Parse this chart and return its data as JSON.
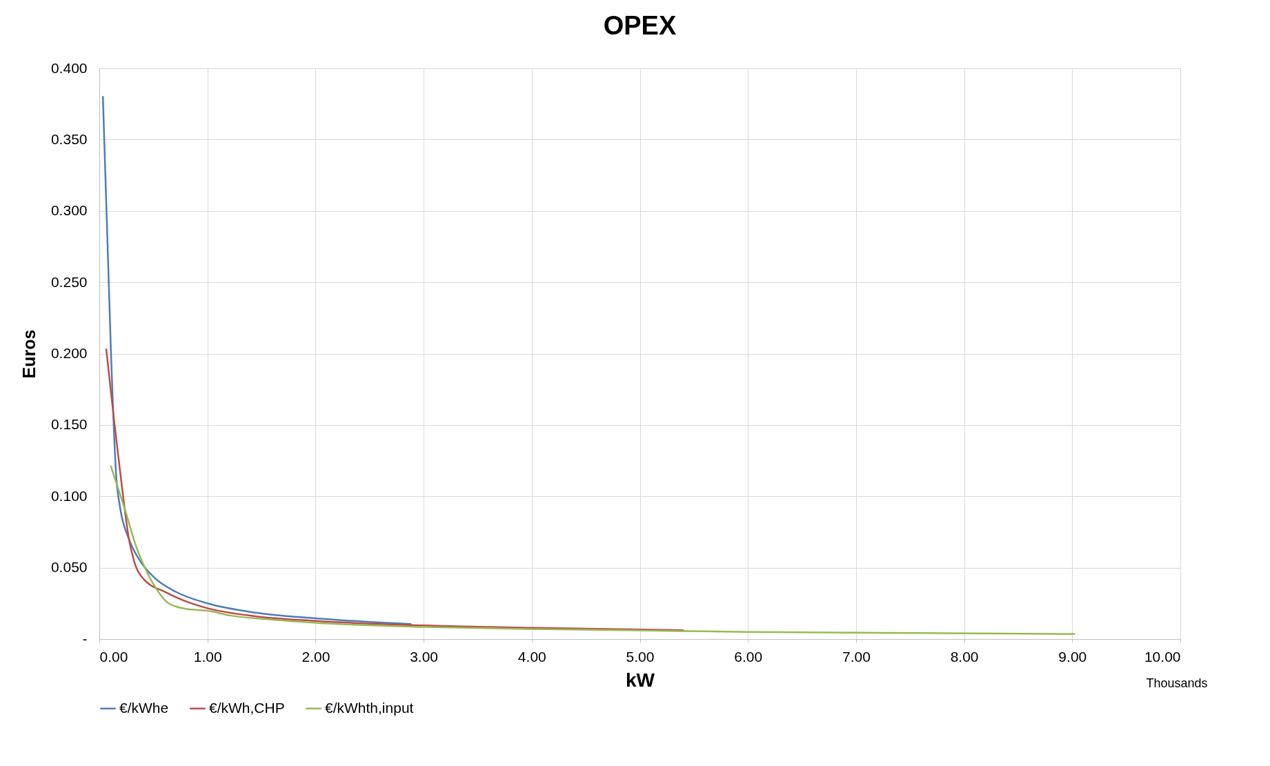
{
  "chart_data": {
    "type": "line",
    "title": "OPEX",
    "xlabel": "kW",
    "ylabel": "Euros",
    "annotations": [
      "Thousands"
    ],
    "xlim": [
      0,
      10
    ],
    "xticks": [
      {
        "value": 0,
        "label": "0.00"
      },
      {
        "value": 1,
        "label": "1.00"
      },
      {
        "value": 2,
        "label": "2.00"
      },
      {
        "value": 3,
        "label": "3.00"
      },
      {
        "value": 4,
        "label": "4.00"
      },
      {
        "value": 5,
        "label": "5.00"
      },
      {
        "value": 6,
        "label": "6.00"
      },
      {
        "value": 7,
        "label": "7.00"
      },
      {
        "value": 8,
        "label": "8.00"
      },
      {
        "value": 9,
        "label": "9.00"
      },
      {
        "value": 10,
        "label": "10.00"
      }
    ],
    "ylim": [
      0,
      0.4
    ],
    "yticks": [
      {
        "value": 0,
        "label": "-"
      },
      {
        "value": 0.05,
        "label": "0.050"
      },
      {
        "value": 0.1,
        "label": "0.100"
      },
      {
        "value": 0.15,
        "label": "0.150"
      },
      {
        "value": 0.2,
        "label": "0.200"
      },
      {
        "value": 0.25,
        "label": "0.250"
      },
      {
        "value": 0.3,
        "label": "0.300"
      },
      {
        "value": 0.35,
        "label": "0.350"
      },
      {
        "value": 0.4,
        "label": "0.400"
      }
    ],
    "grid": true,
    "legend": "bottom",
    "marker": "none",
    "line_style": "solid",
    "series": [
      {
        "name": "€/kWhe",
        "color": "#4a7ebb",
        "x": [
          0.033,
          0.107,
          0.157,
          0.19,
          0.274,
          0.375,
          0.51,
          0.71,
          1.0,
          1.44,
          2.0,
          2.5,
          2.88
        ],
        "values": [
          0.38,
          0.202,
          0.113,
          0.093,
          0.07,
          0.055,
          0.043,
          0.033,
          0.025,
          0.0185,
          0.0145,
          0.012,
          0.0105
        ]
      },
      {
        "name": "€/kWh,CHP",
        "color": "#be4b48",
        "x": [
          0.064,
          0.14,
          0.207,
          0.274,
          0.32,
          0.41,
          0.61,
          0.78,
          1.0,
          1.44,
          2.0,
          3.0,
          4.0,
          5.4
        ],
        "values": [
          0.203,
          0.151,
          0.108,
          0.07,
          0.055,
          0.042,
          0.033,
          0.027,
          0.0216,
          0.016,
          0.0127,
          0.0095,
          0.0078,
          0.0062
        ]
      },
      {
        "name": "€/kWhth,input",
        "color": "#98b954",
        "x": [
          0.107,
          0.24,
          0.34,
          0.425,
          0.525,
          0.64,
          0.81,
          1.0,
          1.21,
          1.61,
          2.0,
          3.0,
          4.0,
          5.0,
          6.0,
          7.0,
          8.0,
          9.02
        ],
        "values": [
          0.121,
          0.09,
          0.065,
          0.0495,
          0.0355,
          0.025,
          0.021,
          0.0198,
          0.0165,
          0.0135,
          0.0114,
          0.0085,
          0.007,
          0.006,
          0.005,
          0.0045,
          0.004,
          0.0035
        ]
      }
    ]
  }
}
